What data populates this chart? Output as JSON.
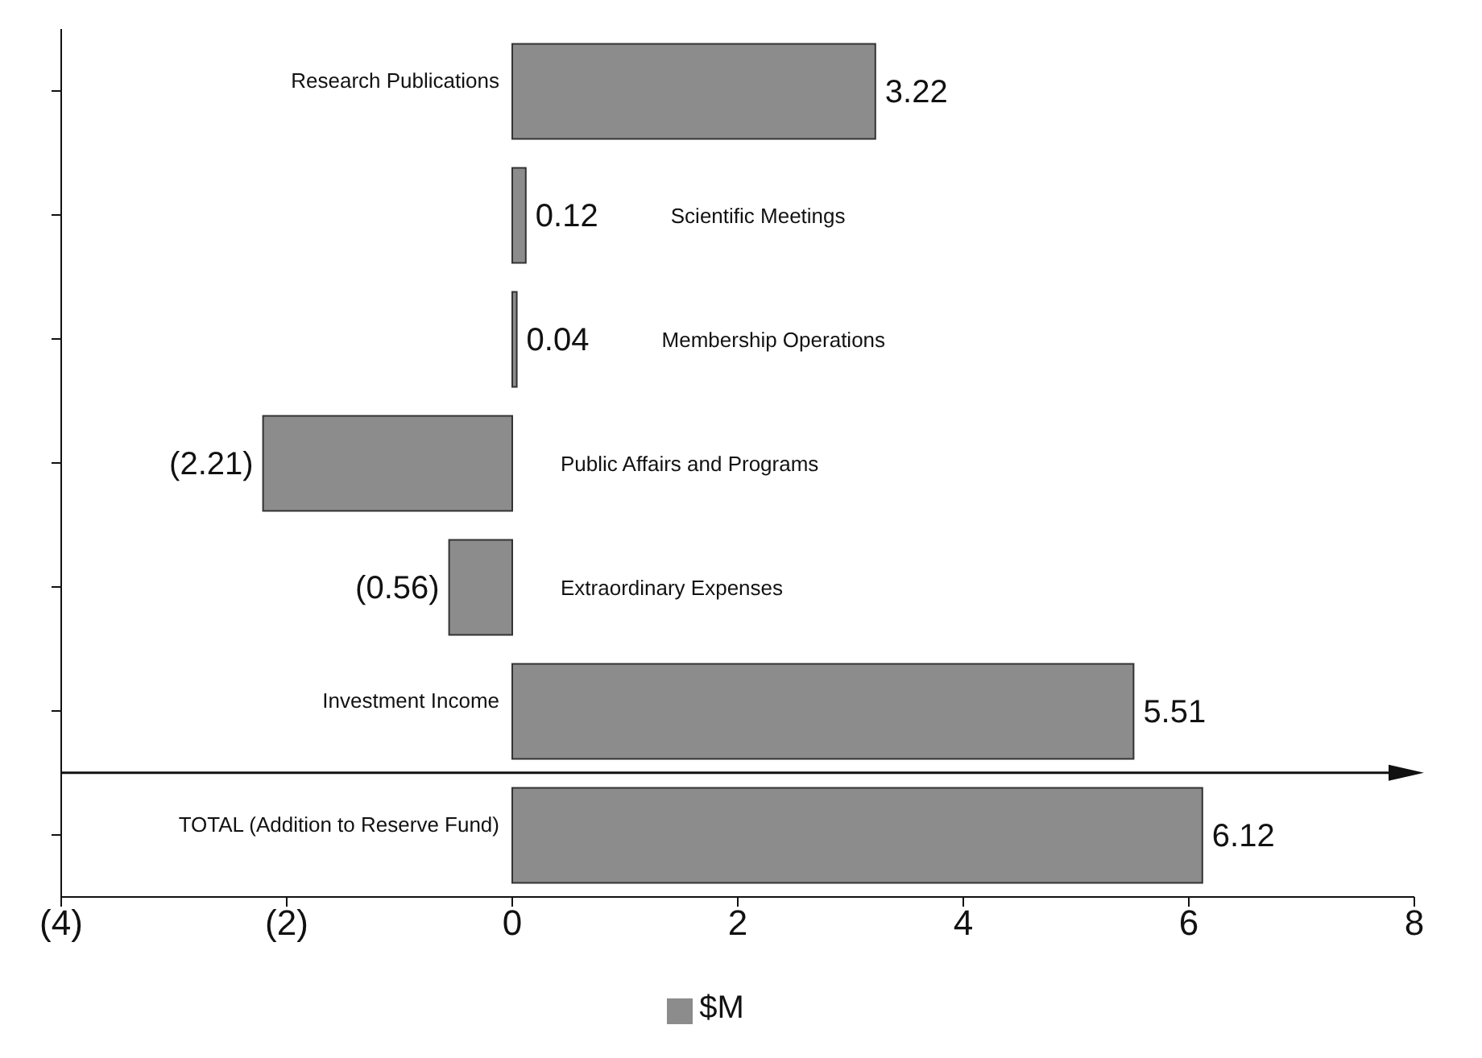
{
  "chart_data": {
    "type": "bar",
    "orientation": "horizontal",
    "categories": [
      "Research Publications",
      "Scientific Meetings",
      "Membership Operations",
      "Public Affairs and Programs",
      "Extraordinary Expenses",
      "Investment Income",
      "TOTAL (Addition to Reserve Fund)"
    ],
    "series": [
      {
        "name": "$M",
        "color": "#8c8c8c",
        "values": [
          3.22,
          0.12,
          0.04,
          -2.21,
          -0.56,
          5.51,
          6.12
        ],
        "value_labels": [
          "3.22",
          "0.12",
          "0.04",
          "(2.21)",
          "(0.56)",
          "5.51",
          "6.12"
        ]
      }
    ],
    "xlim": [
      -4,
      8
    ],
    "xticks": [
      {
        "value": -4,
        "label": "(4)"
      },
      {
        "value": -2,
        "label": "(2)"
      },
      0,
      2,
      4,
      6,
      8
    ],
    "legend": "bottom"
  }
}
